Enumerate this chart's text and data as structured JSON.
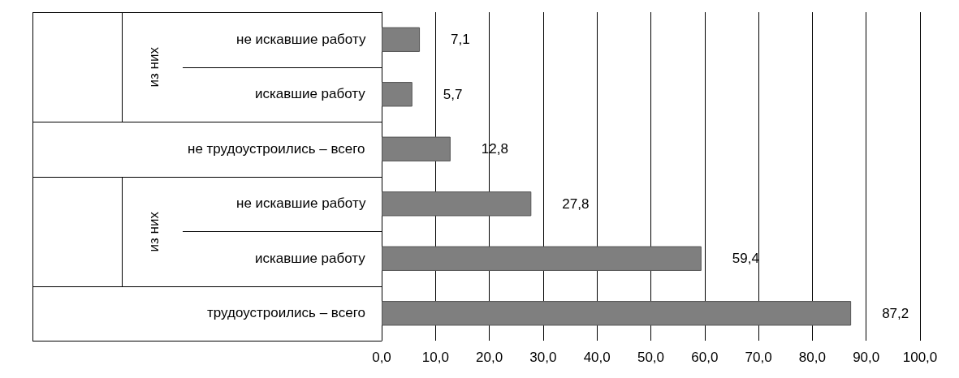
{
  "chart_data": {
    "type": "bar",
    "orientation": "horizontal",
    "categories": [
      "не искавшие работу",
      "искавшие работу",
      "не трудоустроились – всего",
      "не искавшие работу",
      "искавшие работу",
      "трудоустроились – всего"
    ],
    "values": [
      7.1,
      5.7,
      12.8,
      27.8,
      59.4,
      87.2
    ],
    "value_labels": [
      "7,1",
      "5,7",
      "12,8",
      "27,8",
      "59,4",
      "87,2"
    ],
    "color": "#7f7f7f",
    "annotations": [
      "из них",
      "из них"
    ],
    "xlim": [
      0,
      100
    ],
    "xticks": [
      {
        "value": 0,
        "label": "0,0"
      },
      {
        "value": 10,
        "label": "10,0"
      },
      {
        "value": 20,
        "label": "20,0"
      },
      {
        "value": 30,
        "label": "30,0"
      },
      {
        "value": 40,
        "label": "40,0"
      },
      {
        "value": 50,
        "label": "50,0"
      },
      {
        "value": 60,
        "label": "60,0"
      },
      {
        "value": 70,
        "label": "70,0"
      },
      {
        "value": 80,
        "label": "80,0"
      },
      {
        "value": 90,
        "label": "90,0"
      },
      {
        "value": 100,
        "label": "100,0"
      }
    ],
    "grid": "x"
  }
}
